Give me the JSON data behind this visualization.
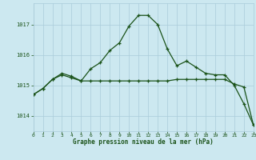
{
  "title": "Graphe pression niveau de la mer (hPa)",
  "background_color": "#cce8f0",
  "grid_color": "#aaccda",
  "line_color": "#1a5218",
  "x_min": 0,
  "x_max": 23,
  "y_min": 1013.5,
  "y_max": 1017.7,
  "yticks": [
    1014,
    1015,
    1016,
    1017
  ],
  "xticks": [
    0,
    1,
    2,
    3,
    4,
    5,
    6,
    7,
    8,
    9,
    10,
    11,
    12,
    13,
    14,
    15,
    16,
    17,
    18,
    19,
    20,
    21,
    22,
    23
  ],
  "series1_x": [
    0,
    1,
    2,
    3,
    4,
    5,
    6,
    7,
    8,
    9,
    10,
    11,
    12,
    13,
    14,
    15,
    16,
    17,
    18,
    19,
    20,
    21,
    22,
    23
  ],
  "series1_y": [
    1014.7,
    1014.9,
    1015.2,
    1015.4,
    1015.3,
    1015.15,
    1015.55,
    1015.75,
    1016.15,
    1016.4,
    1016.95,
    1017.3,
    1017.3,
    1017.0,
    1016.2,
    1015.65,
    1015.8,
    1015.6,
    1015.4,
    1015.35,
    1015.35,
    1015.0,
    1014.4,
    1013.7
  ],
  "series2_x": [
    0,
    1,
    2,
    3,
    4,
    5,
    6,
    7,
    8,
    9,
    10,
    11,
    12,
    13,
    14,
    15,
    16,
    17,
    18,
    19,
    20,
    21,
    22,
    23
  ],
  "series2_y": [
    1014.7,
    1014.9,
    1015.2,
    1015.35,
    1015.25,
    1015.15,
    1015.15,
    1015.15,
    1015.15,
    1015.15,
    1015.15,
    1015.15,
    1015.15,
    1015.15,
    1015.15,
    1015.2,
    1015.2,
    1015.2,
    1015.2,
    1015.2,
    1015.2,
    1015.05,
    1014.95,
    1013.7
  ]
}
